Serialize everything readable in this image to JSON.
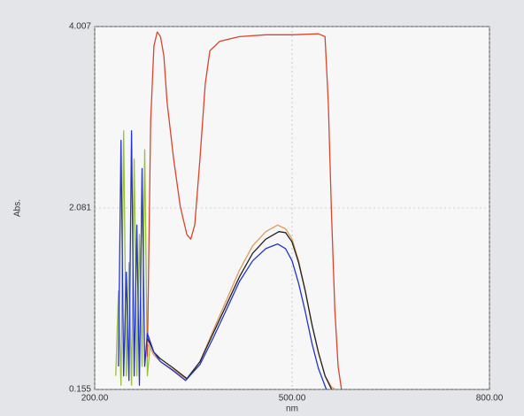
{
  "chart_data": {
    "type": "line",
    "x_label": "nm",
    "y_label": "Abs.",
    "xlim": [
      200,
      800
    ],
    "ylim": [
      0.155,
      4.007
    ],
    "xticks": [
      {
        "value": 200,
        "label": "200.00"
      },
      {
        "value": 500,
        "label": "500.00"
      },
      {
        "value": 800,
        "label": "800.00"
      }
    ],
    "yticks": [
      0.155,
      2.081,
      4.007
    ],
    "grid": true,
    "series": [
      {
        "color": "#9abf3a",
        "x": [
          232,
          236,
          240,
          244,
          248,
          252,
          256,
          260,
          264,
          268,
          272,
          276,
          280,
          284
        ],
        "values": [
          0.3,
          1.2,
          0.2,
          2.9,
          0.3,
          1.5,
          0.2,
          2.6,
          0.3,
          1.8,
          0.4,
          2.7,
          0.3,
          0.6
        ]
      },
      {
        "color": "#d9452b",
        "x": [
          280,
          285,
          290,
          295,
          300,
          305,
          310,
          320,
          330,
          340,
          346,
          352,
          360,
          368,
          375,
          390,
          420,
          460,
          500,
          540,
          550,
          555,
          560,
          565,
          570,
          575
        ],
        "values": [
          0.5,
          3.0,
          3.8,
          3.95,
          3.9,
          3.7,
          3.2,
          2.6,
          2.1,
          1.8,
          1.75,
          1.9,
          2.6,
          3.4,
          3.75,
          3.85,
          3.9,
          3.92,
          3.92,
          3.93,
          3.9,
          3.2,
          2.0,
          1.0,
          0.4,
          0.155
        ]
      },
      {
        "color": "#e09a5a",
        "x": [
          280,
          290,
          300,
          320,
          340,
          360,
          380,
          400,
          420,
          440,
          460,
          478,
          490,
          500,
          510,
          520,
          530,
          540,
          550,
          560,
          566
        ],
        "values": [
          0.65,
          0.52,
          0.45,
          0.36,
          0.26,
          0.45,
          0.78,
          1.1,
          1.42,
          1.68,
          1.83,
          1.9,
          1.86,
          1.75,
          1.52,
          1.2,
          0.85,
          0.55,
          0.3,
          0.18,
          0.155
        ]
      },
      {
        "color": "#222222",
        "x": [
          280,
          290,
          300,
          320,
          340,
          360,
          380,
          400,
          420,
          440,
          460,
          480,
          490,
          500,
          510,
          520,
          530,
          540,
          550,
          560
        ],
        "values": [
          0.7,
          0.55,
          0.48,
          0.38,
          0.27,
          0.45,
          0.75,
          1.05,
          1.35,
          1.6,
          1.75,
          1.83,
          1.82,
          1.72,
          1.5,
          1.2,
          0.85,
          0.55,
          0.3,
          0.155
        ]
      },
      {
        "color": "#2233cc",
        "x": [
          236,
          240,
          244,
          248,
          252,
          256,
          260,
          264,
          268,
          272,
          276,
          280,
          290,
          300,
          320,
          338,
          360,
          380,
          400,
          420,
          440,
          460,
          478,
          490,
          500,
          510,
          520,
          530,
          540,
          552
        ],
        "values": [
          0.4,
          2.8,
          0.3,
          1.4,
          0.25,
          2.9,
          0.3,
          1.9,
          0.2,
          2.5,
          0.4,
          0.75,
          0.55,
          0.45,
          0.35,
          0.25,
          0.42,
          0.7,
          1.0,
          1.3,
          1.52,
          1.65,
          1.7,
          1.65,
          1.52,
          1.28,
          0.98,
          0.65,
          0.38,
          0.155
        ]
      }
    ]
  }
}
